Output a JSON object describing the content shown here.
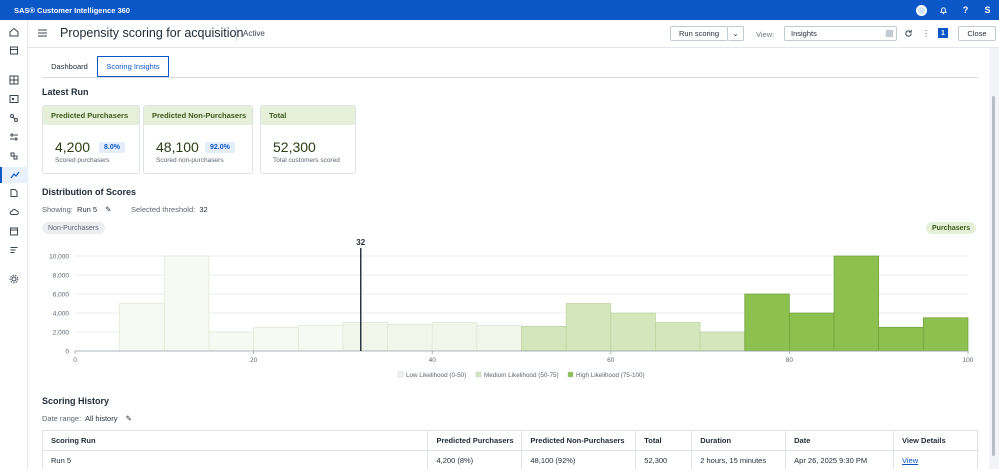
{
  "topbar": {
    "brand": "SAS® Customer Intelligence 360",
    "user_initial": "S"
  },
  "header": {
    "title": "Propensity scoring for acquisition",
    "status": "Active",
    "run_scoring_label": "Run scoring",
    "view_label": "View:",
    "view_value": "Insights",
    "badge_count": "1",
    "close_label": "Close"
  },
  "tabs": [
    {
      "label": "Dashboard"
    },
    {
      "label": "Scoring Insights"
    }
  ],
  "latest_run": {
    "title": "Latest Run",
    "cards": [
      {
        "head": "Predicted Purchasers",
        "value": "4,200",
        "pct": "8.0%",
        "sub": "Scored purchasers"
      },
      {
        "head": "Predicted Non-Purchasers",
        "value": "48,100",
        "pct": "92.0%",
        "sub": "Scored non-purchasers"
      },
      {
        "head": "Total",
        "value": "52,300",
        "sub": "Total customers scored"
      }
    ]
  },
  "distribution": {
    "title": "Distribution of Scores",
    "showing_label": "Showing:",
    "showing_value": "Run 5",
    "threshold_label": "Selected threshold:",
    "threshold_value": "32",
    "left_pill": "Non-Purchasers",
    "right_pill": "Purchasers"
  },
  "chart_data": {
    "type": "bar",
    "x": [
      0,
      5,
      10,
      15,
      20,
      25,
      30,
      35,
      40,
      45,
      50,
      55,
      60,
      65,
      70,
      75,
      80,
      85,
      90,
      95
    ],
    "bin_width": 5,
    "values": [
      0,
      5000,
      10000,
      2000,
      2500,
      2700,
      3000,
      2800,
      3000,
      2700,
      2600,
      5000,
      4000,
      3000,
      2000,
      6000,
      4000,
      10000,
      2500,
      3500
    ],
    "xlim": [
      0,
      100
    ],
    "ylim": [
      0,
      10000
    ],
    "xticks": [
      0,
      20,
      40,
      60,
      80,
      100
    ],
    "yticks": [
      0,
      2000,
      4000,
      6000,
      8000,
      10000
    ],
    "ytick_labels": [
      "0",
      "2,000",
      "4,000",
      "6,000",
      "8,000",
      "10,000"
    ],
    "threshold": 32,
    "threshold_label": "32",
    "legend": [
      {
        "label": "Low Likelihood (0-50)",
        "color": "#f1f5ea"
      },
      {
        "label": "Medium Likelihood (50-75)",
        "color": "#d4e6bb"
      },
      {
        "label": "High Likelihood (75-100)",
        "color": "#8cc04f"
      }
    ],
    "colors": {
      "low": "#f1f5ea",
      "low_faded": "#f7faf2",
      "medium": "#d4e6bb",
      "high": "#8cc04f"
    },
    "grid": true,
    "legend_position": "bottom-center"
  },
  "history": {
    "title": "Scoring History",
    "date_range_label": "Date range:",
    "date_range_value": "All history",
    "columns": [
      "Scoring Run",
      "Predicted Purchasers",
      "Predicted Non-Purchasers",
      "Total",
      "Duration",
      "Date",
      "View Details"
    ],
    "rows": [
      {
        "run": "Run 5",
        "purchasers": "4,200 (8%)",
        "non_purchasers": "48,100 (92%)",
        "total": "52,300",
        "duration": "2 hours, 15 minutes",
        "date": "Apr 26, 2025 9:30 PM",
        "view": "View"
      }
    ]
  }
}
